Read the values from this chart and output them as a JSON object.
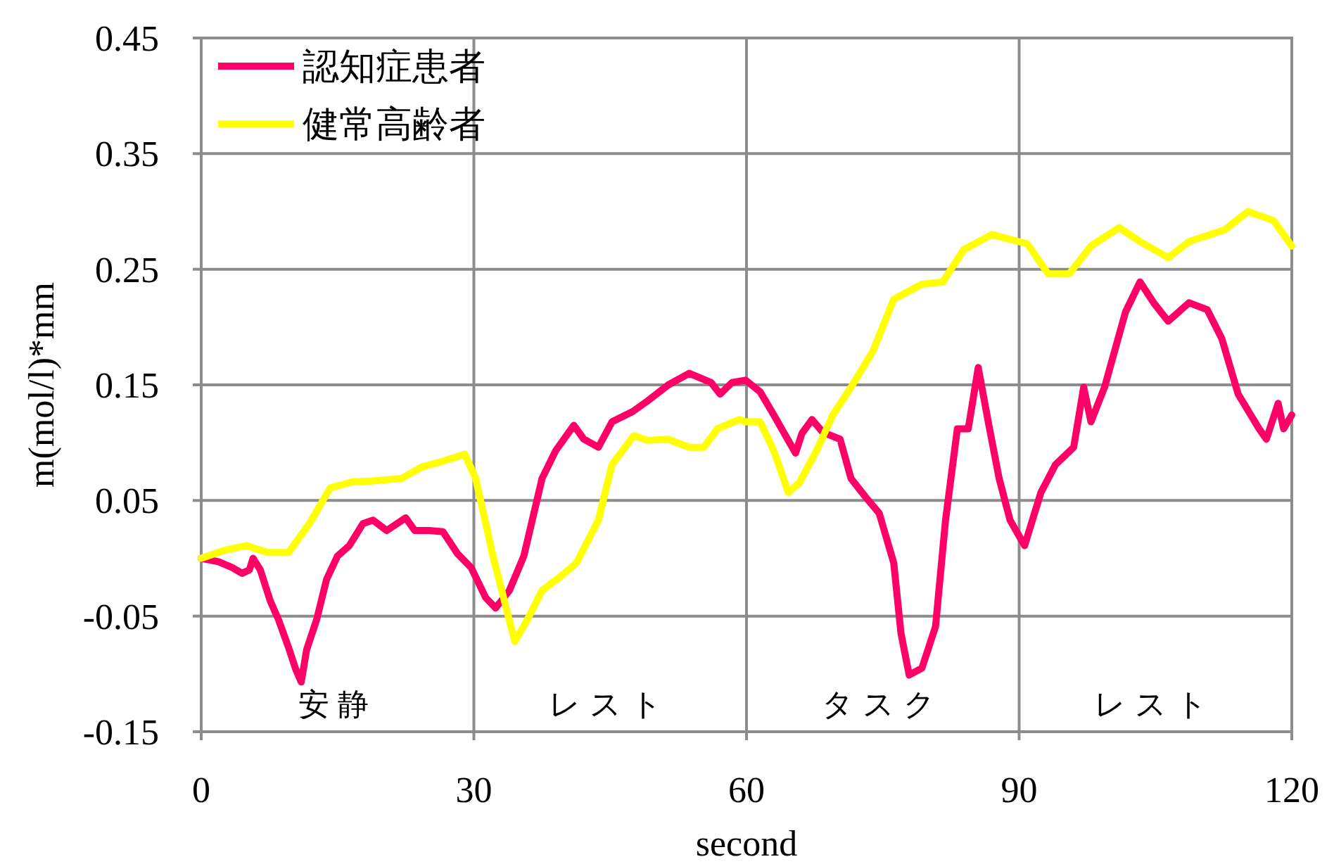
{
  "chart_data": {
    "type": "line",
    "xlabel": "second",
    "ylabel": "m(mol/l)*mm",
    "xlim": [
      0,
      120
    ],
    "ylim": [
      -0.15,
      0.45
    ],
    "xticks": [
      0,
      30,
      60,
      90,
      120
    ],
    "yticks": [
      -0.15,
      -0.05,
      0.05,
      0.15,
      0.25,
      0.35,
      0.45
    ],
    "grid": true,
    "legend": "top left",
    "line_style": "solid",
    "annotations": [
      "安静",
      "レスト",
      "タスク",
      "レスト"
    ],
    "series": [
      {
        "name": "認知症患者",
        "color": "#ff0066",
        "x": [
          0,
          1.9,
          3.4,
          4.5,
          5.3,
          5.7,
          6.5,
          7.6,
          8.5,
          9.6,
          10.4,
          11.0,
          11.6,
          12.7,
          13.8,
          15.0,
          16.3,
          17.8,
          18.9,
          20.4,
          22.5,
          23.5,
          25.1,
          26.6,
          28.2,
          29.7,
          31.3,
          32.4,
          33.9,
          35.5,
          37.5,
          39.0,
          41.0,
          42.1,
          43.7,
          45.2,
          47.5,
          49.1,
          51.4,
          53.7,
          56.1,
          57.1,
          58.4,
          59.9,
          61.5,
          63.0,
          64.3,
          65.4,
          66.1,
          67.2,
          68.4,
          70.3,
          71.5,
          73.1,
          74.6,
          76.2,
          77.0,
          77.9,
          79.3,
          80.8,
          81.9,
          83.2,
          84.4,
          85.5,
          86.6,
          87.8,
          89.0,
          90.6,
          92.4,
          94.0,
          96.0,
          97.1,
          97.9,
          99.4,
          101.7,
          103.3,
          104.8,
          106.4,
          108.7,
          110.7,
          112.3,
          114.1,
          116.4,
          117.2,
          118.5,
          119.1,
          120
        ],
        "values": [
          0,
          -0.003,
          -0.008,
          -0.013,
          -0.01,
          0.0,
          -0.01,
          -0.037,
          -0.053,
          -0.077,
          -0.096,
          -0.107,
          -0.079,
          -0.053,
          -0.018,
          0.002,
          0.011,
          0.03,
          0.033,
          0.024,
          0.035,
          0.024,
          0.024,
          0.023,
          0.004,
          -0.008,
          -0.034,
          -0.043,
          -0.028,
          0.002,
          0.069,
          0.093,
          0.115,
          0.103,
          0.096,
          0.118,
          0.127,
          0.136,
          0.15,
          0.16,
          0.152,
          0.142,
          0.152,
          0.154,
          0.144,
          0.124,
          0.106,
          0.091,
          0.108,
          0.12,
          0.109,
          0.103,
          0.069,
          0.053,
          0.039,
          -0.004,
          -0.065,
          -0.101,
          -0.095,
          -0.059,
          0.033,
          0.112,
          0.112,
          0.165,
          0.118,
          0.069,
          0.033,
          0.011,
          0.057,
          0.081,
          0.096,
          0.148,
          0.118,
          0.148,
          0.213,
          0.239,
          0.221,
          0.205,
          0.221,
          0.215,
          0.19,
          0.142,
          0.112,
          0.103,
          0.134,
          0.112,
          0.124
        ]
      },
      {
        "name": "健常高齢者",
        "color": "#ffff00",
        "x": [
          0,
          2.6,
          5.0,
          7.3,
          9.6,
          11.9,
          14.2,
          16.6,
          18.9,
          22.0,
          24.3,
          26.6,
          29.0,
          30.2,
          32.1,
          34.5,
          35.9,
          37.5,
          39.8,
          41.3,
          43.7,
          45.2,
          47.6,
          49.1,
          51.4,
          53.7,
          55.3,
          56.8,
          59.2,
          59.9,
          61.5,
          63.0,
          64.6,
          65.8,
          67.7,
          69.5,
          71.5,
          73.9,
          76.2,
          79.3,
          81.6,
          83.9,
          87.0,
          90.9,
          93.2,
          95.5,
          97.9,
          101.0,
          103.3,
          106.4,
          108.7,
          112.6,
          115.2,
          118.0,
          120
        ],
        "values": [
          0,
          0.007,
          0.011,
          0.005,
          0.005,
          0.03,
          0.061,
          0.066,
          0.067,
          0.069,
          0.079,
          0.084,
          0.09,
          0.069,
          0.002,
          -0.072,
          -0.053,
          -0.028,
          -0.014,
          -0.004,
          0.033,
          0.081,
          0.106,
          0.102,
          0.103,
          0.096,
          0.096,
          0.112,
          0.12,
          0.118,
          0.118,
          0.093,
          0.057,
          0.065,
          0.093,
          0.124,
          0.148,
          0.179,
          0.224,
          0.237,
          0.239,
          0.267,
          0.28,
          0.272,
          0.246,
          0.246,
          0.27,
          0.286,
          0.274,
          0.26,
          0.274,
          0.284,
          0.3,
          0.292,
          0.27
        ]
      }
    ]
  }
}
